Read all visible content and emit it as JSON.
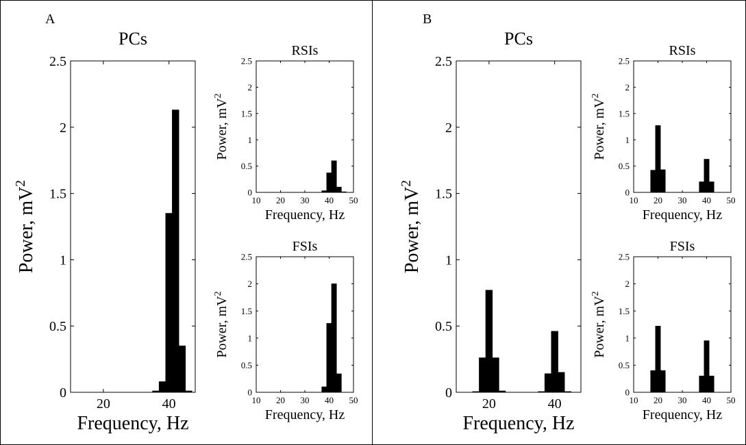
{
  "panel_letters": [
    "A",
    "B"
  ],
  "chart_data": [
    {
      "id": "A-PCs",
      "panel": "A",
      "type": "bar",
      "title": "PCs",
      "xlabel": "Frequency, Hz",
      "ylabel": "Power, mV",
      "ylabel_sup": "2",
      "xlim": [
        10,
        48
      ],
      "ylim": [
        0,
        2.5
      ],
      "xticks": [
        20,
        40
      ],
      "yticks": [
        0,
        0.5,
        1,
        1.5,
        2,
        2.5
      ],
      "bar_width": 2,
      "x": [
        36,
        38,
        40,
        42,
        44,
        46
      ],
      "values": [
        0.01,
        0.08,
        1.35,
        2.13,
        0.35,
        0.01
      ],
      "grid": false
    },
    {
      "id": "A-RSIs",
      "panel": "A",
      "type": "bar",
      "title": "RSIs",
      "xlabel": "Frequency, Hz",
      "ylabel": "Power, mV",
      "ylabel_sup": "2",
      "xlim": [
        10,
        50
      ],
      "ylim": [
        0,
        2.5
      ],
      "xticks": [
        10,
        20,
        30,
        40,
        50
      ],
      "yticks": [
        0,
        0.5,
        1,
        1.5,
        2,
        2.5
      ],
      "bar_width": 2,
      "x": [
        38,
        40,
        42,
        44,
        46
      ],
      "values": [
        0.03,
        0.37,
        0.6,
        0.1,
        0.01
      ],
      "grid": false
    },
    {
      "id": "A-FSIs",
      "panel": "A",
      "type": "bar",
      "title": "FSIs",
      "xlabel": "Frequency, Hz",
      "ylabel": "Power, mV",
      "ylabel_sup": "2",
      "xlim": [
        10,
        50
      ],
      "ylim": [
        0,
        2.5
      ],
      "xticks": [
        10,
        20,
        30,
        40,
        50
      ],
      "yticks": [
        0,
        0.5,
        1,
        1.5,
        2,
        2.5
      ],
      "bar_width": 2,
      "x": [
        38,
        40,
        42,
        44
      ],
      "values": [
        0.1,
        1.27,
        2.0,
        0.34
      ],
      "grid": false
    },
    {
      "id": "B-PCs",
      "panel": "B",
      "type": "bar",
      "title": "PCs",
      "xlabel": "Frequency, Hz",
      "ylabel": "Power, mV",
      "ylabel_sup": "2",
      "xlim": [
        10,
        48
      ],
      "ylim": [
        0,
        2.5
      ],
      "xticks": [
        20,
        40
      ],
      "yticks": [
        0,
        0.5,
        1,
        1.5,
        2,
        2.5
      ],
      "bar_width": 2,
      "x": [
        16,
        18,
        20,
        22,
        24,
        36,
        38,
        40,
        42,
        44
      ],
      "values": [
        0.005,
        0.26,
        0.77,
        0.26,
        0.01,
        0.005,
        0.14,
        0.46,
        0.15,
        0.005
      ],
      "grid": false
    },
    {
      "id": "B-RSIs",
      "panel": "B",
      "type": "bar",
      "title": "RSIs",
      "xlabel": "Frequency, Hz",
      "ylabel": "Power, mV",
      "ylabel_sup": "2",
      "xlim": [
        10,
        50
      ],
      "ylim": [
        0,
        2.5
      ],
      "xticks": [
        10,
        20,
        30,
        40,
        50
      ],
      "yticks": [
        0,
        0.5,
        1,
        1.5,
        2,
        2.5
      ],
      "bar_width": 2,
      "x": [
        18,
        20,
        22,
        38,
        40,
        42
      ],
      "values": [
        0.42,
        1.27,
        0.43,
        0.2,
        0.63,
        0.2
      ],
      "grid": false
    },
    {
      "id": "B-FSIs",
      "panel": "B",
      "type": "bar",
      "title": "FSIs",
      "xlabel": "Frequency, Hz",
      "ylabel": "Power, mV",
      "ylabel_sup": "2",
      "xlim": [
        10,
        50
      ],
      "ylim": [
        0,
        2.5
      ],
      "xticks": [
        10,
        20,
        30,
        40,
        50
      ],
      "yticks": [
        0,
        0.5,
        1,
        1.5,
        2,
        2.5
      ],
      "bar_width": 2,
      "x": [
        18,
        20,
        22,
        38,
        40,
        42
      ],
      "values": [
        0.4,
        1.22,
        0.4,
        0.3,
        0.95,
        0.3
      ],
      "grid": false
    }
  ]
}
